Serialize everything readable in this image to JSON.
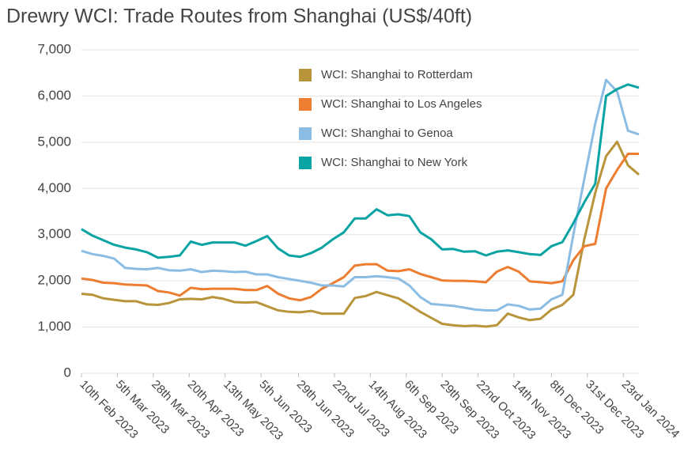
{
  "chart_data": {
    "type": "line",
    "title": "Drewry WCI: Trade Routes from Shanghai (US$/40ft)",
    "x": [
      "2023-02-10",
      "2023-02-17",
      "2023-02-24",
      "2023-03-03",
      "2023-03-10",
      "2023-03-17",
      "2023-03-24",
      "2023-03-31",
      "2023-04-07",
      "2023-04-14",
      "2023-04-21",
      "2023-04-28",
      "2023-05-05",
      "2023-05-12",
      "2023-05-19",
      "2023-05-26",
      "2023-06-02",
      "2023-06-09",
      "2023-06-16",
      "2023-06-23",
      "2023-06-30",
      "2023-07-07",
      "2023-07-14",
      "2023-07-21",
      "2023-07-28",
      "2023-08-04",
      "2023-08-11",
      "2023-08-18",
      "2023-08-25",
      "2023-09-01",
      "2023-09-08",
      "2023-09-15",
      "2023-09-22",
      "2023-09-29",
      "2023-10-06",
      "2023-10-13",
      "2023-10-20",
      "2023-10-27",
      "2023-11-03",
      "2023-11-10",
      "2023-11-17",
      "2023-11-24",
      "2023-12-01",
      "2023-12-08",
      "2023-12-15",
      "2023-12-22",
      "2023-12-29",
      "2024-01-05",
      "2024-01-12",
      "2024-01-19",
      "2024-01-26",
      "2024-02-02"
    ],
    "xlim": [
      "2023-02-10",
      "2024-02-02"
    ],
    "xticks": [
      {
        "value": "2023-02-10",
        "label": "10th Feb 2023"
      },
      {
        "value": "2023-03-05",
        "label": "5th Mar 2023"
      },
      {
        "value": "2023-03-28",
        "label": "28th Mar 2023"
      },
      {
        "value": "2023-04-20",
        "label": "20th Apr 2023"
      },
      {
        "value": "2023-05-13",
        "label": "13th May 2023"
      },
      {
        "value": "2023-06-05",
        "label": "5th Jun 2023"
      },
      {
        "value": "2023-06-29",
        "label": "29th Jun 2023"
      },
      {
        "value": "2023-07-22",
        "label": "22nd Jul 2023"
      },
      {
        "value": "2023-08-14",
        "label": "14th Aug 2023"
      },
      {
        "value": "2023-09-06",
        "label": "6th Sep 2023"
      },
      {
        "value": "2023-09-29",
        "label": "29th Sep 2023"
      },
      {
        "value": "2023-10-22",
        "label": "22nd Oct 2023"
      },
      {
        "value": "2023-11-14",
        "label": "14th Nov 2023"
      },
      {
        "value": "2023-12-08",
        "label": "8th Dec 2023"
      },
      {
        "value": "2023-12-31",
        "label": "31st Dec 2023"
      },
      {
        "value": "2024-01-23",
        "label": "23rd Jan 2024"
      }
    ],
    "ylim": [
      0,
      7000
    ],
    "yticks": [
      0,
      {
        "value": 1000,
        "label": "1,000"
      },
      {
        "value": 2000,
        "label": "2,000"
      },
      {
        "value": 3000,
        "label": "3,000"
      },
      {
        "value": 4000,
        "label": "4,000"
      },
      {
        "value": 5000,
        "label": "5,000"
      },
      {
        "value": 6000,
        "label": "6,000"
      },
      {
        "value": 7000,
        "label": "7,000"
      }
    ],
    "grid": true,
    "legend": "top",
    "series": [
      {
        "name": "WCI: Shanghai to Rotterdam",
        "color": "#b8943a",
        "values": [
          1720,
          1700,
          1620,
          1590,
          1560,
          1560,
          1490,
          1480,
          1520,
          1600,
          1610,
          1600,
          1650,
          1610,
          1540,
          1530,
          1540,
          1450,
          1360,
          1330,
          1320,
          1350,
          1290,
          1290,
          1290,
          1630,
          1670,
          1760,
          1690,
          1620,
          1480,
          1330,
          1200,
          1070,
          1040,
          1020,
          1030,
          1010,
          1040,
          1290,
          1210,
          1150,
          1180,
          1380,
          1480,
          1700,
          2900,
          3900,
          4700,
          5010,
          4500,
          4300
        ]
      },
      {
        "name": "WCI: Shanghai to Los Angeles",
        "color": "#ed7d31",
        "values": [
          2050,
          2020,
          1960,
          1950,
          1920,
          1910,
          1900,
          1780,
          1750,
          1680,
          1850,
          1820,
          1830,
          1830,
          1830,
          1800,
          1800,
          1890,
          1720,
          1620,
          1580,
          1650,
          1830,
          1950,
          2080,
          2330,
          2360,
          2360,
          2220,
          2210,
          2250,
          2150,
          2080,
          2010,
          2000,
          2000,
          1990,
          1970,
          2200,
          2300,
          2200,
          1990,
          1970,
          1950,
          1990,
          2450,
          2750,
          2800,
          4000,
          4400,
          4750,
          4750
        ]
      },
      {
        "name": "WCI: Shanghai to Genoa",
        "color": "#8bbde4",
        "values": [
          2650,
          2580,
          2540,
          2480,
          2280,
          2260,
          2250,
          2280,
          2230,
          2220,
          2250,
          2190,
          2220,
          2210,
          2190,
          2200,
          2140,
          2140,
          2080,
          2040,
          2000,
          1960,
          1900,
          1900,
          1880,
          2080,
          2080,
          2100,
          2080,
          2050,
          1900,
          1650,
          1500,
          1480,
          1460,
          1420,
          1380,
          1360,
          1360,
          1490,
          1460,
          1380,
          1400,
          1600,
          1700,
          3000,
          4200,
          5400,
          6350,
          6100,
          5250,
          5170
        ]
      },
      {
        "name": "WCI: Shanghai to New York",
        "color": "#0aa3a3",
        "values": [
          3120,
          2980,
          2880,
          2780,
          2720,
          2680,
          2620,
          2500,
          2520,
          2550,
          2850,
          2780,
          2830,
          2830,
          2830,
          2760,
          2860,
          2970,
          2700,
          2550,
          2520,
          2600,
          2720,
          2900,
          3050,
          3350,
          3350,
          3550,
          3420,
          3440,
          3400,
          3050,
          2900,
          2680,
          2690,
          2630,
          2640,
          2550,
          2630,
          2660,
          2620,
          2580,
          2560,
          2750,
          2840,
          3250,
          3700,
          4100,
          6000,
          6150,
          6250,
          6180
        ]
      }
    ]
  }
}
